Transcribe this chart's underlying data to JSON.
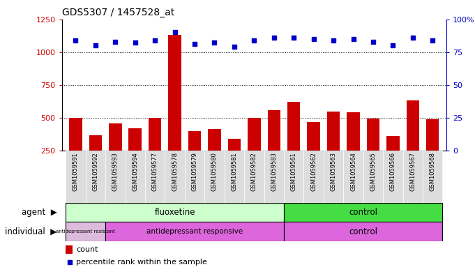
{
  "title": "GDS5307 / 1457528_at",
  "samples": [
    "GSM1059591",
    "GSM1059592",
    "GSM1059593",
    "GSM1059594",
    "GSM1059577",
    "GSM1059578",
    "GSM1059579",
    "GSM1059580",
    "GSM1059581",
    "GSM1059582",
    "GSM1059583",
    "GSM1059561",
    "GSM1059562",
    "GSM1059563",
    "GSM1059564",
    "GSM1059565",
    "GSM1059566",
    "GSM1059567",
    "GSM1059568"
  ],
  "counts": [
    500,
    370,
    455,
    420,
    500,
    1130,
    400,
    415,
    340,
    500,
    560,
    620,
    470,
    550,
    540,
    495,
    360,
    630,
    490
  ],
  "percentiles": [
    84,
    80,
    83,
    82,
    84,
    90,
    81,
    82,
    79,
    84,
    86,
    86,
    85,
    84,
    85,
    83,
    80,
    86,
    84
  ],
  "bar_color": "#cc0000",
  "dot_color": "#0000cc",
  "ylim_left": [
    250,
    1250
  ],
  "ylim_right": [
    0,
    100
  ],
  "yticks_left": [
    250,
    500,
    750,
    1000,
    1250
  ],
  "yticks_right": [
    0,
    25,
    50,
    75,
    100
  ],
  "hlines": [
    500,
    750,
    1000
  ],
  "fluox_color": "#ccffcc",
  "ctrl_agent_color": "#44dd44",
  "resist_color": "#ddbbdd",
  "responsive_color": "#dd66dd",
  "ctrl_indiv_color": "#dd66dd",
  "legend_count_label": "count",
  "legend_percentile_label": "percentile rank within the sample",
  "agent_label": "agent",
  "individual_label": "individual"
}
